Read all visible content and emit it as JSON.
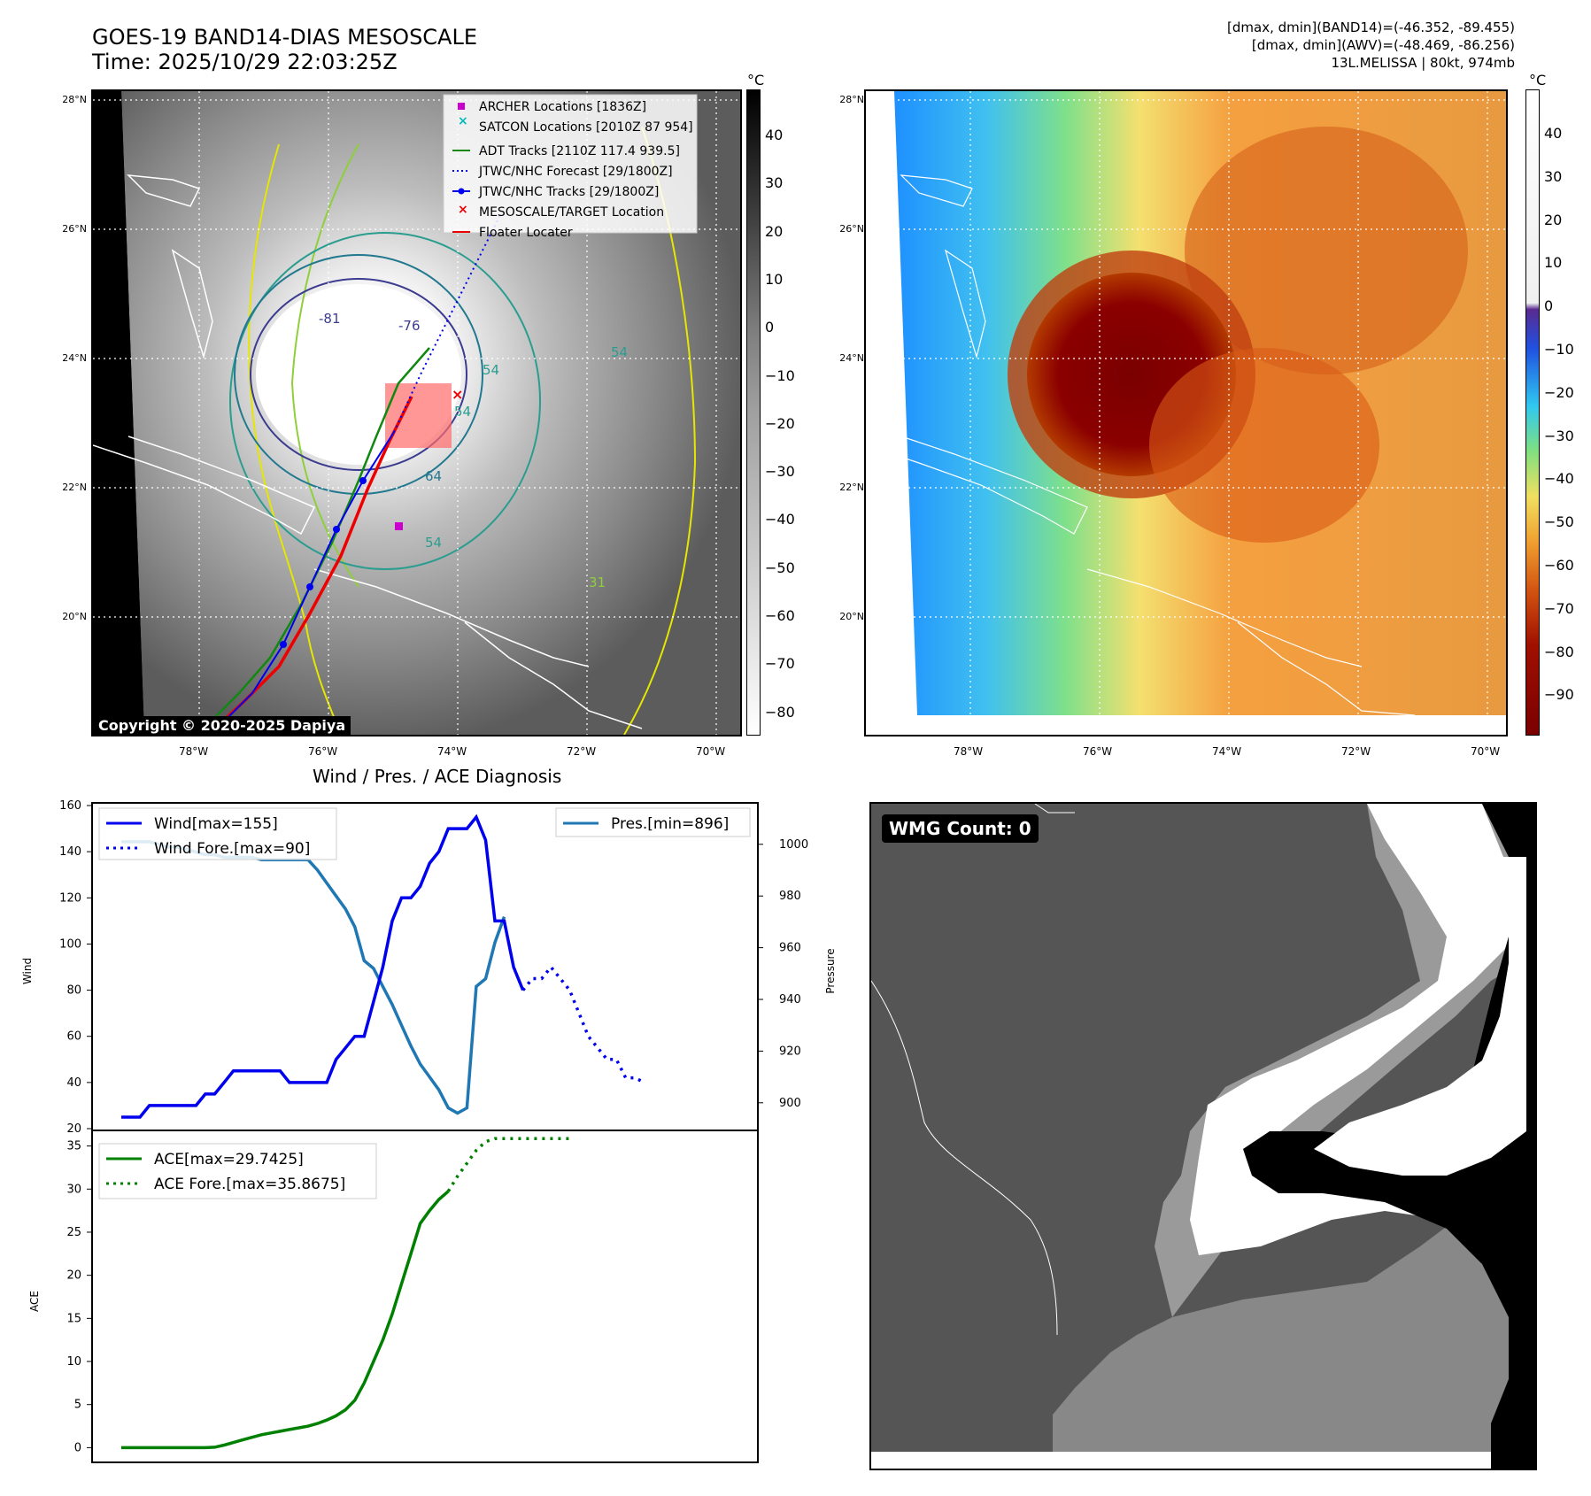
{
  "header": {
    "title_line1": "GOES-19 BAND14-DIAS MESOSCALE",
    "title_line2": "Time: 2025/10/29 22:03:25Z",
    "info_line1": "[dmax, dmin](BAND14)=(-46.352, -89.455)",
    "info_line2": "[dmax, dmin](AWV)=(-48.469, -86.256)",
    "info_line3": "13L.MELISSA | 80kt, 974mb"
  },
  "map": {
    "lat_labels": [
      "28°N",
      "26°N",
      "24°N",
      "22°N",
      "20°N"
    ],
    "lon_labels": [
      "78°W",
      "76°W",
      "74°W",
      "72°W",
      "70°W"
    ],
    "copyright": "Copyright © 2020-2025 Dapiya",
    "contour_labels": [
      "-81",
      "-76",
      "54",
      "54",
      "64",
      "54",
      "31",
      "54"
    ],
    "legend": [
      {
        "label": "ARCHER Locations [1836Z]",
        "symbol": "square",
        "color": "#cc00cc"
      },
      {
        "label": "SATCON Locations [2010Z 87 954]",
        "symbol": "x",
        "color": "#00bbbb"
      },
      {
        "label": "ADT Tracks [2110Z 117.4 939.5]",
        "symbol": "line",
        "color": "#118811"
      },
      {
        "label": "JTWC/NHC Forecast [29/1800Z]",
        "symbol": "dotted",
        "color": "#0000ee"
      },
      {
        "label": "JTWC/NHC Tracks [29/1800Z]",
        "symbol": "dotline",
        "color": "#0000ee"
      },
      {
        "label": "MESOSCALE/TARGET Location",
        "symbol": "x",
        "color": "#ee0000"
      },
      {
        "label": "Floater Locater",
        "symbol": "line",
        "color": "#ee0000"
      }
    ]
  },
  "colorbar_left": {
    "unit": "°C",
    "ticks": [
      "40",
      "30",
      "20",
      "10",
      "0",
      "−10",
      "−20",
      "−30",
      "−40",
      "−50",
      "−60",
      "−70",
      "−80"
    ]
  },
  "colorbar_right": {
    "unit": "°C",
    "ticks": [
      "40",
      "30",
      "20",
      "10",
      "0",
      "−10",
      "−20",
      "−30",
      "−40",
      "−50",
      "−60",
      "−70",
      "−80",
      "−90"
    ]
  },
  "wmg": {
    "label": "WMG Count: 0"
  },
  "colors": {
    "wind": "#0000ee",
    "pressure": "#1f77b4",
    "ace": "#008000",
    "target": "#ee0000"
  },
  "chart_data": [
    {
      "type": "line",
      "title": "Wind / Pres. / ACE Diagnosis",
      "ylabel": "Wind",
      "y2label": "Pressure",
      "ylim": [
        20,
        160
      ],
      "y2lim": [
        890,
        1015
      ],
      "yticks": [
        20,
        40,
        60,
        80,
        100,
        120,
        140,
        160
      ],
      "y2ticks": [
        900,
        920,
        940,
        960,
        980,
        1000
      ],
      "series": [
        {
          "name": "Wind[max=155]",
          "style": "solid",
          "axis": "left",
          "values": [
            25,
            25,
            25,
            30,
            30,
            30,
            30,
            30,
            30,
            35,
            35,
            40,
            45,
            45,
            45,
            45,
            45,
            45,
            40,
            40,
            40,
            40,
            40,
            50,
            55,
            60,
            60,
            75,
            90,
            110,
            120,
            120,
            125,
            135,
            140,
            150,
            150,
            150,
            155,
            145,
            110,
            110,
            90,
            80
          ]
        },
        {
          "name": "Wind Fore.[max=90]",
          "style": "dotted",
          "axis": "left",
          "start_index": 43,
          "values": [
            80,
            85,
            85,
            90,
            85,
            80,
            70,
            60,
            55,
            50,
            50,
            42,
            42,
            40
          ]
        },
        {
          "name": "Pres.[min=896]",
          "style": "solid",
          "axis": "right",
          "values": [
            1001,
            1001,
            1001,
            1001,
            1000,
            999,
            999,
            998,
            997,
            996,
            996,
            995,
            995,
            995,
            995,
            994,
            994,
            994,
            994,
            994,
            994,
            990,
            985,
            980,
            975,
            968,
            955,
            952,
            945,
            938,
            930,
            922,
            915,
            910,
            905,
            898,
            896,
            898,
            945,
            948,
            962,
            972
          ]
        }
      ]
    },
    {
      "type": "line",
      "ylabel": "ACE",
      "ylim": [
        -1.5,
        36.5
      ],
      "yticks": [
        0,
        5,
        10,
        15,
        20,
        25,
        30,
        35
      ],
      "series": [
        {
          "name": "ACE[max=29.7425]",
          "style": "solid",
          "values": [
            0,
            0,
            0,
            0,
            0,
            0,
            0,
            0,
            0,
            0,
            0.05,
            0.3,
            0.6,
            0.9,
            1.2,
            1.5,
            1.7,
            1.9,
            2.1,
            2.3,
            2.5,
            2.8,
            3.2,
            3.7,
            4.4,
            5.5,
            7.5,
            10,
            12.5,
            15.5,
            19,
            22.5,
            26,
            27.5,
            28.8,
            29.7425
          ]
        },
        {
          "name": "ACE Fore.[max=35.8675]",
          "style": "dotted",
          "start_index": 35,
          "values": [
            29.7425,
            31.5,
            33,
            34.5,
            35.5,
            35.8675,
            35.8675,
            35.8675,
            35.8675,
            35.8675,
            35.8675,
            35.8675,
            35.8675,
            35.8675
          ]
        }
      ]
    }
  ]
}
